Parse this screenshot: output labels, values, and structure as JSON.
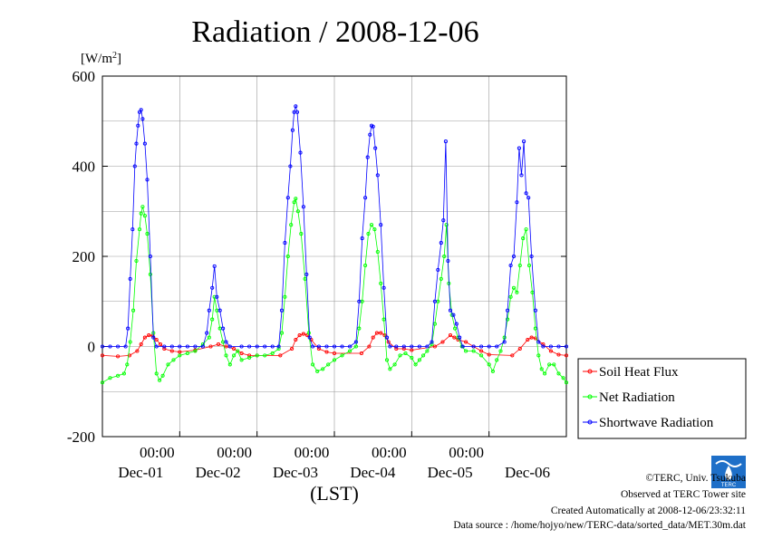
{
  "chart_data": {
    "type": "line",
    "title": "Radiation / 2008-12-06",
    "ylabel": "[W/m",
    "ylabel_sup": "2",
    "ylabel_close": "]",
    "xlabel": "(LST)",
    "ylim": [
      -200,
      600
    ],
    "yticks": [
      -200,
      0,
      200,
      400,
      600
    ],
    "x_range_days": [
      0,
      6
    ],
    "xticks": [
      {
        "time": "00:00",
        "date": "Dec-01",
        "day": 1
      },
      {
        "time": "00:00",
        "date": "Dec-02",
        "day": 2
      },
      {
        "time": "00:00",
        "date": "Dec-03",
        "day": 3
      },
      {
        "time": "00:00",
        "date": "Dec-04",
        "day": 4
      },
      {
        "time": "00:00",
        "date": "Dec-05",
        "day": 5
      }
    ],
    "xticks_extra_dates": [
      {
        "date": "Dec-06",
        "day": 6
      }
    ],
    "grid": true,
    "legend_position": "right",
    "series": [
      {
        "name": "Soil Heat Flux",
        "color": "#ff0000",
        "points": [
          [
            0.0,
            -20
          ],
          [
            0.2,
            -22
          ],
          [
            0.35,
            -20
          ],
          [
            0.45,
            -10
          ],
          [
            0.5,
            5
          ],
          [
            0.55,
            20
          ],
          [
            0.6,
            25
          ],
          [
            0.65,
            24
          ],
          [
            0.7,
            15
          ],
          [
            0.75,
            5
          ],
          [
            0.8,
            -5
          ],
          [
            0.9,
            -10
          ],
          [
            1.0,
            -12
          ],
          [
            1.2,
            -8
          ],
          [
            1.4,
            0
          ],
          [
            1.5,
            5
          ],
          [
            1.6,
            0
          ],
          [
            1.7,
            -5
          ],
          [
            1.8,
            -15
          ],
          [
            1.9,
            -20
          ],
          [
            2.0,
            -20
          ],
          [
            2.3,
            -20
          ],
          [
            2.45,
            -5
          ],
          [
            2.5,
            15
          ],
          [
            2.55,
            25
          ],
          [
            2.6,
            28
          ],
          [
            2.65,
            25
          ],
          [
            2.7,
            15
          ],
          [
            2.8,
            -5
          ],
          [
            2.9,
            -12
          ],
          [
            3.0,
            -15
          ],
          [
            3.35,
            -15
          ],
          [
            3.45,
            0
          ],
          [
            3.5,
            20
          ],
          [
            3.55,
            30
          ],
          [
            3.6,
            30
          ],
          [
            3.65,
            25
          ],
          [
            3.7,
            10
          ],
          [
            3.8,
            -5
          ],
          [
            3.9,
            -5
          ],
          [
            4.0,
            -8
          ],
          [
            4.3,
            0
          ],
          [
            4.4,
            10
          ],
          [
            4.5,
            25
          ],
          [
            4.55,
            20
          ],
          [
            4.6,
            15
          ],
          [
            4.7,
            10
          ],
          [
            4.8,
            0
          ],
          [
            4.9,
            -10
          ],
          [
            5.0,
            -18
          ],
          [
            5.3,
            -20
          ],
          [
            5.4,
            -5
          ],
          [
            5.5,
            15
          ],
          [
            5.55,
            20
          ],
          [
            5.6,
            18
          ],
          [
            5.7,
            5
          ],
          [
            5.8,
            -10
          ],
          [
            5.9,
            -18
          ],
          [
            6.0,
            -20
          ]
        ]
      },
      {
        "name": "Net Radiation",
        "color": "#00ff00",
        "points": [
          [
            0.0,
            -80
          ],
          [
            0.1,
            -70
          ],
          [
            0.2,
            -65
          ],
          [
            0.28,
            -60
          ],
          [
            0.32,
            -40
          ],
          [
            0.36,
            10
          ],
          [
            0.4,
            80
          ],
          [
            0.44,
            190
          ],
          [
            0.48,
            260
          ],
          [
            0.5,
            295
          ],
          [
            0.52,
            310
          ],
          [
            0.55,
            290
          ],
          [
            0.58,
            250
          ],
          [
            0.62,
            160
          ],
          [
            0.66,
            30
          ],
          [
            0.7,
            -60
          ],
          [
            0.74,
            -75
          ],
          [
            0.78,
            -65
          ],
          [
            0.85,
            -40
          ],
          [
            0.92,
            -30
          ],
          [
            1.0,
            -20
          ],
          [
            1.1,
            -15
          ],
          [
            1.2,
            -10
          ],
          [
            1.3,
            5
          ],
          [
            1.38,
            20
          ],
          [
            1.42,
            60
          ],
          [
            1.45,
            110
          ],
          [
            1.48,
            80
          ],
          [
            1.52,
            40
          ],
          [
            1.56,
            10
          ],
          [
            1.6,
            -20
          ],
          [
            1.65,
            -40
          ],
          [
            1.7,
            -20
          ],
          [
            1.75,
            -10
          ],
          [
            1.8,
            -30
          ],
          [
            1.9,
            -25
          ],
          [
            2.0,
            -20
          ],
          [
            2.1,
            -20
          ],
          [
            2.2,
            -15
          ],
          [
            2.28,
            -5
          ],
          [
            2.32,
            30
          ],
          [
            2.36,
            110
          ],
          [
            2.4,
            200
          ],
          [
            2.44,
            270
          ],
          [
            2.48,
            320
          ],
          [
            2.5,
            328
          ],
          [
            2.53,
            300
          ],
          [
            2.57,
            250
          ],
          [
            2.62,
            150
          ],
          [
            2.67,
            30
          ],
          [
            2.72,
            -40
          ],
          [
            2.78,
            -55
          ],
          [
            2.85,
            -50
          ],
          [
            2.92,
            -40
          ],
          [
            3.0,
            -30
          ],
          [
            3.1,
            -20
          ],
          [
            3.2,
            -10
          ],
          [
            3.28,
            0
          ],
          [
            3.32,
            40
          ],
          [
            3.36,
            100
          ],
          [
            3.4,
            180
          ],
          [
            3.44,
            250
          ],
          [
            3.48,
            270
          ],
          [
            3.52,
            260
          ],
          [
            3.56,
            210
          ],
          [
            3.6,
            140
          ],
          [
            3.64,
            60
          ],
          [
            3.68,
            -30
          ],
          [
            3.72,
            -50
          ],
          [
            3.78,
            -40
          ],
          [
            3.85,
            -20
          ],
          [
            3.92,
            -15
          ],
          [
            4.0,
            -25
          ],
          [
            4.05,
            -40
          ],
          [
            4.1,
            -30
          ],
          [
            4.15,
            -20
          ],
          [
            4.2,
            -10
          ],
          [
            4.26,
            5
          ],
          [
            4.3,
            50
          ],
          [
            4.34,
            100
          ],
          [
            4.38,
            150
          ],
          [
            4.42,
            200
          ],
          [
            4.45,
            270
          ],
          [
            4.48,
            140
          ],
          [
            4.52,
            70
          ],
          [
            4.56,
            40
          ],
          [
            4.6,
            20
          ],
          [
            4.65,
            0
          ],
          [
            4.7,
            -10
          ],
          [
            4.8,
            -10
          ],
          [
            4.9,
            -20
          ],
          [
            5.0,
            -40
          ],
          [
            5.05,
            -55
          ],
          [
            5.1,
            -30
          ],
          [
            5.15,
            -10
          ],
          [
            5.2,
            20
          ],
          [
            5.24,
            60
          ],
          [
            5.28,
            110
          ],
          [
            5.32,
            130
          ],
          [
            5.36,
            120
          ],
          [
            5.4,
            180
          ],
          [
            5.44,
            240
          ],
          [
            5.48,
            260
          ],
          [
            5.52,
            180
          ],
          [
            5.56,
            120
          ],
          [
            5.6,
            40
          ],
          [
            5.64,
            -20
          ],
          [
            5.68,
            -50
          ],
          [
            5.72,
            -60
          ],
          [
            5.78,
            -40
          ],
          [
            5.84,
            -40
          ],
          [
            5.9,
            -60
          ],
          [
            5.96,
            -70
          ],
          [
            6.0,
            -80
          ]
        ]
      },
      {
        "name": "Shortwave Radiation",
        "color": "#0000ff",
        "points": [
          [
            0.0,
            0
          ],
          [
            0.1,
            0
          ],
          [
            0.2,
            0
          ],
          [
            0.3,
            0
          ],
          [
            0.33,
            40
          ],
          [
            0.36,
            150
          ],
          [
            0.39,
            260
          ],
          [
            0.42,
            400
          ],
          [
            0.44,
            450
          ],
          [
            0.46,
            490
          ],
          [
            0.48,
            520
          ],
          [
            0.5,
            525
          ],
          [
            0.52,
            505
          ],
          [
            0.55,
            450
          ],
          [
            0.58,
            370
          ],
          [
            0.62,
            200
          ],
          [
            0.66,
            20
          ],
          [
            0.7,
            0
          ],
          [
            0.8,
            0
          ],
          [
            0.9,
            0
          ],
          [
            1.0,
            0
          ],
          [
            1.1,
            0
          ],
          [
            1.2,
            0
          ],
          [
            1.3,
            0
          ],
          [
            1.35,
            30
          ],
          [
            1.38,
            80
          ],
          [
            1.42,
            130
          ],
          [
            1.45,
            178
          ],
          [
            1.48,
            110
          ],
          [
            1.52,
            80
          ],
          [
            1.56,
            40
          ],
          [
            1.6,
            10
          ],
          [
            1.65,
            0
          ],
          [
            1.8,
            0
          ],
          [
            1.9,
            0
          ],
          [
            2.0,
            0
          ],
          [
            2.1,
            0
          ],
          [
            2.2,
            0
          ],
          [
            2.28,
            0
          ],
          [
            2.32,
            80
          ],
          [
            2.36,
            230
          ],
          [
            2.4,
            330
          ],
          [
            2.43,
            400
          ],
          [
            2.46,
            480
          ],
          [
            2.48,
            520
          ],
          [
            2.5,
            533
          ],
          [
            2.52,
            520
          ],
          [
            2.56,
            430
          ],
          [
            2.6,
            310
          ],
          [
            2.64,
            160
          ],
          [
            2.68,
            20
          ],
          [
            2.72,
            0
          ],
          [
            2.8,
            0
          ],
          [
            2.9,
            0
          ],
          [
            3.0,
            0
          ],
          [
            3.1,
            0
          ],
          [
            3.2,
            0
          ],
          [
            3.28,
            10
          ],
          [
            3.32,
            100
          ],
          [
            3.36,
            240
          ],
          [
            3.4,
            330
          ],
          [
            3.43,
            420
          ],
          [
            3.46,
            470
          ],
          [
            3.48,
            490
          ],
          [
            3.5,
            488
          ],
          [
            3.53,
            440
          ],
          [
            3.56,
            380
          ],
          [
            3.6,
            270
          ],
          [
            3.64,
            130
          ],
          [
            3.68,
            20
          ],
          [
            3.72,
            0
          ],
          [
            3.8,
            0
          ],
          [
            3.9,
            0
          ],
          [
            4.0,
            0
          ],
          [
            4.1,
            0
          ],
          [
            4.2,
            0
          ],
          [
            4.26,
            10
          ],
          [
            4.3,
            100
          ],
          [
            4.34,
            170
          ],
          [
            4.38,
            230
          ],
          [
            4.41,
            280
          ],
          [
            4.44,
            455
          ],
          [
            4.47,
            190
          ],
          [
            4.5,
            80
          ],
          [
            4.54,
            70
          ],
          [
            4.58,
            50
          ],
          [
            4.62,
            20
          ],
          [
            4.66,
            0
          ],
          [
            4.8,
            0
          ],
          [
            4.9,
            0
          ],
          [
            5.0,
            0
          ],
          [
            5.1,
            0
          ],
          [
            5.2,
            10
          ],
          [
            5.24,
            80
          ],
          [
            5.28,
            180
          ],
          [
            5.32,
            200
          ],
          [
            5.36,
            320
          ],
          [
            5.39,
            440
          ],
          [
            5.42,
            380
          ],
          [
            5.45,
            455
          ],
          [
            5.48,
            340
          ],
          [
            5.51,
            330
          ],
          [
            5.55,
            200
          ],
          [
            5.6,
            80
          ],
          [
            5.64,
            10
          ],
          [
            5.7,
            0
          ],
          [
            5.8,
            0
          ],
          [
            5.9,
            0
          ],
          [
            6.0,
            0
          ]
        ]
      }
    ]
  },
  "footer": {
    "logo_text": "TERC",
    "copyright": "©TERC, Univ. Tsukuba",
    "observed": "Observed at TERC Tower site",
    "created": "Created Automatically at 2008-12-06/23:32:11",
    "source": "Data source : /home/hojyo/new/TERC-data/sorted_data/MET.30m.dat"
  }
}
